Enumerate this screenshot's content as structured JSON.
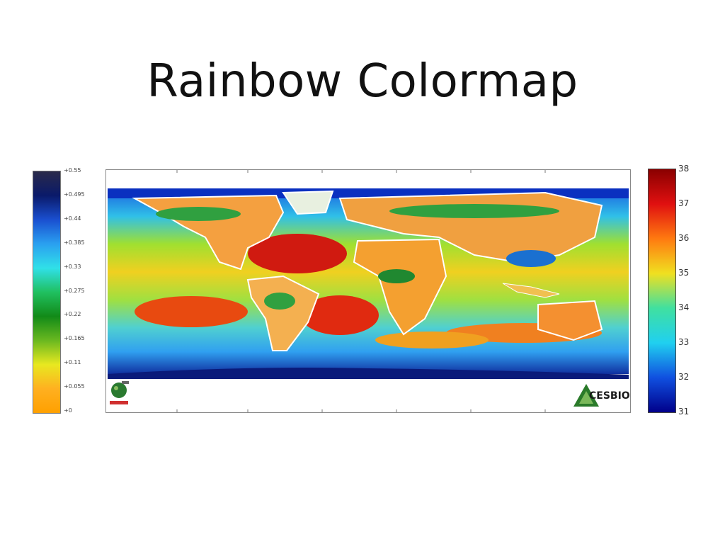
{
  "title": "Rainbow Colormap",
  "left_colorbar": {
    "ticks": [
      "+0.55",
      "+0.495",
      "+0.44",
      "+0.385",
      "+0.33",
      "+0.275",
      "+0.22",
      "+0.165",
      "+0.11",
      "+0.055",
      "+0"
    ],
    "colors": [
      "#2a2a4a",
      "#0a1a6a",
      "#1a4fd0",
      "#2aa0f0",
      "#30e0e8",
      "#20c060",
      "#128a18",
      "#6ab820",
      "#e8e820",
      "#ffb020",
      "#ffa000"
    ]
  },
  "right_colorbar": {
    "ticks": [
      "38",
      "37",
      "36",
      "35",
      "34",
      "33",
      "32",
      "31"
    ],
    "colors": [
      "#8a0000",
      "#e01010",
      "#ff7a10",
      "#f0e020",
      "#40e0a0",
      "#20d0f0",
      "#1050e0",
      "#00008a"
    ]
  },
  "logos": {
    "right_text": "CESBIO",
    "left_icon": "smos-satellite-logo-icon",
    "right_icon": "cesbio-triangle-logo-icon"
  }
}
